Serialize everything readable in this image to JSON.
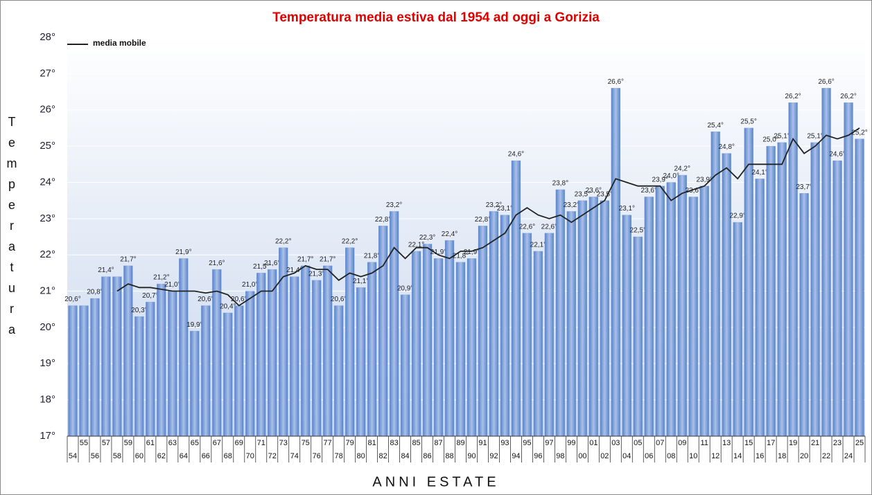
{
  "chart_data": {
    "type": "bar",
    "title": "Temperatura media estiva dal 1954 ad oggi a Gorizia",
    "y_label": "Temperatura",
    "x_label": "ANNI ESTATE",
    "categories": [
      "54",
      "55",
      "56",
      "57",
      "58",
      "59",
      "60",
      "61",
      "62",
      "63",
      "64",
      "65",
      "66",
      "67",
      "68",
      "69",
      "70",
      "71",
      "72",
      "73",
      "74",
      "75",
      "76",
      "77",
      "78",
      "79",
      "80",
      "81",
      "82",
      "83",
      "84",
      "85",
      "86",
      "87",
      "88",
      "89",
      "90",
      "91",
      "92",
      "93",
      "94",
      "95",
      "96",
      "97",
      "98",
      "99",
      "00",
      "01",
      "02",
      "03",
      "04",
      "05",
      "06",
      "07",
      "08",
      "09",
      "10",
      "11",
      "12",
      "13",
      "14",
      "15",
      "16",
      "17",
      "18",
      "19",
      "20",
      "21",
      "22",
      "23",
      "24",
      "25"
    ],
    "values": [
      20.6,
      20.6,
      20.8,
      21.4,
      21.4,
      21.7,
      20.3,
      20.7,
      21.2,
      21.0,
      21.9,
      19.9,
      20.6,
      21.6,
      20.4,
      20.6,
      21.0,
      21.5,
      21.6,
      22.2,
      21.4,
      21.7,
      21.3,
      21.7,
      20.6,
      22.2,
      21.1,
      21.8,
      22.8,
      23.2,
      20.9,
      22.1,
      22.3,
      21.9,
      22.4,
      21.8,
      21.9,
      22.8,
      23.2,
      23.1,
      24.6,
      22.6,
      22.1,
      22.6,
      23.8,
      23.2,
      23.5,
      23.6,
      23.5,
      26.6,
      23.1,
      22.5,
      23.6,
      23.9,
      24.0,
      24.2,
      23.6,
      23.9,
      25.4,
      24.8,
      22.9,
      25.5,
      24.1,
      25.0,
      25.1,
      26.2,
      23.7,
      25.1,
      26.6,
      24.6,
      26.2,
      25.2
    ],
    "value_labels": [
      "20,6°",
      null,
      "20,8°",
      "21,4°",
      null,
      "21,7°",
      "20,3°",
      "20,7°",
      "21,2°",
      "21,0°",
      "21,9°",
      "19,9°",
      "20,6°",
      "21,6°",
      "20,4°",
      "20,6°",
      "21,0°",
      "21,5°",
      "21,6°",
      "22,2°",
      "21,4°",
      "21,7°",
      "21,3°",
      "21,7°",
      "20,6°",
      "22,2°",
      "21,1°",
      "21,8°",
      "22,8°",
      "23,2°",
      "20,9°",
      "22,1°",
      "22,3°",
      "21,9°",
      "22,4°",
      "21,8°",
      "21,9°",
      "22,8°",
      "23,2°",
      "23,1°",
      "24,6°",
      "22,6°",
      "22,1°",
      "22,6°",
      "23,8°",
      "23,2°",
      "23,5°",
      "23,6°",
      "23,5°",
      "26,6°",
      "23,1°",
      "22,5°",
      "23,6°",
      "23,9°",
      "24,0°",
      "24,2°",
      "23,6°",
      "23,9°",
      "25,4°",
      "24,8°",
      "22,9°",
      "25,5°",
      "24,1°",
      "25,0°",
      "25,1°",
      "26,2°",
      "23,7°",
      "25,1°",
      "26,6°",
      "24,6°",
      "26,2°",
      "25,2°"
    ],
    "color": "#7a9fdc",
    "line": {
      "name": "media mobile",
      "color": "#222222",
      "values": [
        null,
        null,
        null,
        null,
        21.0,
        21.2,
        21.1,
        21.1,
        21.05,
        21.0,
        21.0,
        21.0,
        20.95,
        21.0,
        20.9,
        20.6,
        20.8,
        21.0,
        21.0,
        21.4,
        21.5,
        21.7,
        21.6,
        21.6,
        21.3,
        21.5,
        21.4,
        21.5,
        21.7,
        22.2,
        21.9,
        22.2,
        22.2,
        22.0,
        21.9,
        22.1,
        22.1,
        22.2,
        22.4,
        22.6,
        23.1,
        23.3,
        23.1,
        23.0,
        23.1,
        22.9,
        23.1,
        23.3,
        23.5,
        24.1,
        24.0,
        23.9,
        23.9,
        23.9,
        23.5,
        23.7,
        23.8,
        23.9,
        24.2,
        24.4,
        24.1,
        24.5,
        24.5,
        24.5,
        24.5,
        25.2,
        24.8,
        25.0,
        25.3,
        25.2,
        25.3,
        25.5
      ]
    },
    "ylim": [
      17,
      28
    ],
    "yticks": [
      {
        "value": 17,
        "label": "17°"
      },
      {
        "value": 18,
        "label": "18°"
      },
      {
        "value": 19,
        "label": "19°"
      },
      {
        "value": 20,
        "label": "20°"
      },
      {
        "value": 21,
        "label": "21°"
      },
      {
        "value": 22,
        "label": "22°"
      },
      {
        "value": 23,
        "label": "23°"
      },
      {
        "value": 24,
        "label": "24°"
      },
      {
        "value": 25,
        "label": "25°"
      },
      {
        "value": 26,
        "label": "26°"
      },
      {
        "value": 27,
        "label": "27°"
      },
      {
        "value": 28,
        "label": "28°"
      }
    ],
    "grid": true,
    "legend": "top-left"
  }
}
